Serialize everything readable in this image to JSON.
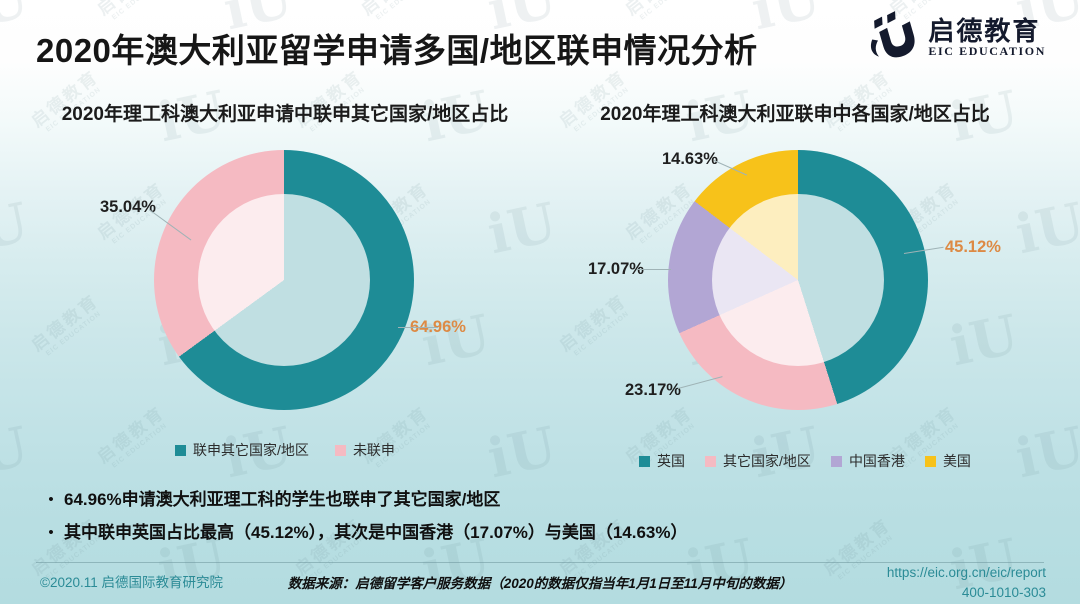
{
  "slide": {
    "title": "2020年澳大利亚留学申请多国/地区联申情况分析"
  },
  "logo": {
    "name_cn": "启德教育",
    "name_en": "EIC EDUCATION"
  },
  "watermark": {
    "cn": "启德教育",
    "en": "EIC EDUCATION",
    "mark": "iU"
  },
  "chart_data": [
    {
      "type": "pie",
      "variant": "donut",
      "title": "2020年理工科澳大利亚申请中联申其它国家/地区占比",
      "start_angle_deg": 0,
      "direction": "clockwise",
      "legend_position": "bottom",
      "segments": [
        {
          "label": "联申其它国家/地区",
          "value": 64.96,
          "display": "64.96%",
          "color": "#1e8c96",
          "label_color": "#dd8a44"
        },
        {
          "label": "未联申",
          "value": 35.04,
          "display": "35.04%",
          "color": "#f5bac2",
          "label_color": "#1f1f1f"
        }
      ]
    },
    {
      "type": "pie",
      "variant": "donut",
      "title": "2020年理工科澳大利亚联申中各国家/地区占比",
      "start_angle_deg": 0,
      "direction": "clockwise",
      "legend_position": "bottom",
      "segments": [
        {
          "label": "英国",
          "value": 45.12,
          "display": "45.12%",
          "color": "#1e8c96",
          "label_color": "#dd8a44"
        },
        {
          "label": "其它国家/地区",
          "value": 23.17,
          "display": "23.17%",
          "color": "#f5bac2",
          "label_color": "#1f1f1f"
        },
        {
          "label": "中国香港",
          "value": 17.07,
          "display": "17.07%",
          "color": "#b2a6d4",
          "label_color": "#1f1f1f"
        },
        {
          "label": "美国",
          "value": 14.63,
          "display": "14.63%",
          "color": "#f7c21a",
          "label_color": "#1f1f1f"
        }
      ]
    }
  ],
  "bullets": [
    "64.96%申请澳大利亚理工科的学生也联申了其它国家/地区",
    "其中联申英国占比最高（45.12%），其次是中国香港（17.07%）与美国（14.63%）"
  ],
  "footer": {
    "copyright": "©2020.11 启德国际教育研究院",
    "source": "数据来源：启德留学客户服务数据（2020的数据仅指当年1月1日至11月中旬的数据）",
    "url": "https://eic.org.cn/eic/report",
    "phone": "400-1010-303"
  }
}
